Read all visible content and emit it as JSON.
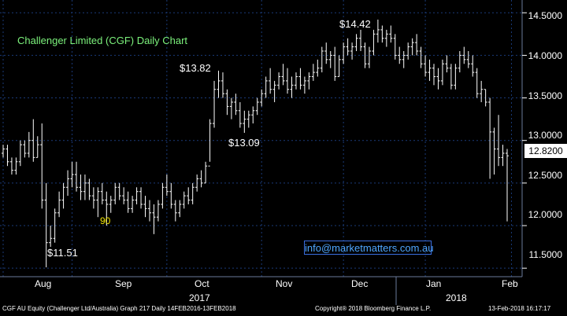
{
  "chart_data": {
    "type": "ohlc",
    "title": "Challenger Limited (CGF) Daily Chart",
    "ylabel": "",
    "xlabel": "",
    "y_ticks": [
      "14.5000",
      "14.0000",
      "13.5000",
      "13.0000",
      "12.5000",
      "12.0000",
      "11.5000"
    ],
    "y_tick_values": [
      14.5,
      14.0,
      13.5,
      13.0,
      12.5,
      12.0,
      11.5
    ],
    "ylim": [
      11.4,
      14.65
    ],
    "x_month_labels": [
      "Aug",
      "Sep",
      "Oct",
      "Nov",
      "Dec",
      "Jan",
      "Feb"
    ],
    "x_year_labels": [
      "2017",
      "2018"
    ],
    "last_price": "12.8200",
    "annotations": {
      "high": "$14.42",
      "oct_high": "$13.82",
      "nov_low": "$13.09",
      "low": "$11.51",
      "sep_marker": "90"
    },
    "series": [
      {
        "values": [
          [
            12.85,
            12.95,
            12.8,
            12.9
          ],
          [
            12.9,
            12.95,
            12.7,
            12.75
          ],
          [
            12.75,
            12.8,
            12.6,
            12.65
          ],
          [
            12.65,
            12.8,
            12.6,
            12.75
          ],
          [
            12.75,
            13.0,
            12.7,
            12.95
          ],
          [
            12.95,
            13.0,
            12.8,
            12.85
          ],
          [
            12.85,
            13.1,
            12.8,
            13.0
          ],
          [
            13.0,
            13.25,
            12.75,
            12.8
          ],
          [
            12.8,
            13.05,
            12.8,
            12.95
          ],
          [
            12.95,
            13.2,
            12.2,
            12.3
          ],
          [
            12.3,
            12.5,
            11.51,
            11.8
          ],
          [
            11.8,
            12.0,
            11.75,
            11.85
          ],
          [
            11.85,
            12.2,
            11.8,
            12.15
          ],
          [
            12.15,
            12.4,
            12.1,
            12.3
          ],
          [
            12.3,
            12.5,
            12.2,
            12.45
          ],
          [
            12.45,
            12.65,
            12.35,
            12.55
          ],
          [
            12.55,
            12.75,
            12.45,
            12.6
          ],
          [
            12.6,
            12.75,
            12.4,
            12.45
          ],
          [
            12.45,
            12.6,
            12.3,
            12.4
          ],
          [
            12.4,
            12.6,
            12.3,
            12.5
          ],
          [
            12.5,
            12.55,
            12.3,
            12.35
          ],
          [
            12.35,
            12.45,
            12.2,
            12.3
          ],
          [
            12.3,
            12.45,
            12.1,
            12.4
          ],
          [
            12.4,
            12.5,
            12.25,
            12.3
          ],
          [
            12.3,
            12.4,
            12.0,
            12.25
          ],
          [
            12.25,
            12.35,
            12.15,
            12.3
          ],
          [
            12.3,
            12.5,
            12.25,
            12.45
          ],
          [
            12.45,
            12.5,
            12.3,
            12.35
          ],
          [
            12.35,
            12.45,
            12.25,
            12.3
          ],
          [
            12.3,
            12.4,
            12.15,
            12.2
          ],
          [
            12.2,
            12.35,
            12.15,
            12.3
          ],
          [
            12.3,
            12.45,
            12.25,
            12.4
          ],
          [
            12.4,
            12.45,
            12.2,
            12.25
          ],
          [
            12.25,
            12.35,
            12.1,
            12.2
          ],
          [
            12.2,
            12.3,
            12.05,
            12.15
          ],
          [
            12.15,
            12.25,
            11.9,
            12.1
          ],
          [
            12.1,
            12.3,
            12.05,
            12.25
          ],
          [
            12.25,
            12.5,
            12.2,
            12.45
          ],
          [
            12.45,
            12.6,
            12.35,
            12.4
          ],
          [
            12.4,
            12.5,
            12.2,
            12.25
          ],
          [
            12.25,
            12.3,
            12.05,
            12.15
          ],
          [
            12.15,
            12.3,
            12.1,
            12.25
          ],
          [
            12.25,
            12.4,
            12.2,
            12.35
          ],
          [
            12.35,
            12.45,
            12.25,
            12.3
          ],
          [
            12.3,
            12.5,
            12.25,
            12.45
          ],
          [
            12.45,
            12.6,
            12.4,
            12.55
          ],
          [
            12.55,
            12.65,
            12.45,
            12.5
          ],
          [
            12.5,
            12.75,
            12.5,
            12.7
          ],
          [
            12.7,
            13.25,
            12.75,
            13.2
          ],
          [
            13.2,
            13.7,
            13.15,
            13.6
          ],
          [
            13.6,
            13.82,
            13.5,
            13.7
          ],
          [
            13.7,
            13.8,
            13.5,
            13.55
          ],
          [
            13.55,
            13.6,
            13.3,
            13.4
          ],
          [
            13.4,
            13.5,
            13.25,
            13.45
          ],
          [
            13.45,
            13.55,
            13.3,
            13.35
          ],
          [
            13.35,
            13.45,
            13.15,
            13.2
          ],
          [
            13.2,
            13.35,
            13.09,
            13.25
          ],
          [
            13.25,
            13.35,
            13.15,
            13.3
          ],
          [
            13.3,
            13.4,
            13.2,
            13.35
          ],
          [
            13.35,
            13.5,
            13.3,
            13.45
          ],
          [
            13.45,
            13.6,
            13.4,
            13.55
          ],
          [
            13.55,
            13.75,
            13.5,
            13.7
          ],
          [
            13.7,
            13.85,
            13.55,
            13.6
          ],
          [
            13.6,
            13.7,
            13.45,
            13.65
          ],
          [
            13.65,
            13.8,
            13.6,
            13.75
          ],
          [
            13.75,
            13.9,
            13.65,
            13.7
          ],
          [
            13.7,
            13.85,
            13.55,
            13.6
          ],
          [
            13.6,
            13.75,
            13.5,
            13.65
          ],
          [
            13.65,
            13.8,
            13.6,
            13.75
          ],
          [
            13.75,
            13.85,
            13.6,
            13.65
          ],
          [
            13.65,
            13.75,
            13.55,
            13.7
          ],
          [
            13.7,
            13.8,
            13.6,
            13.75
          ],
          [
            13.75,
            13.9,
            13.7,
            13.8
          ],
          [
            13.8,
            13.95,
            13.75,
            13.85
          ],
          [
            13.85,
            14.1,
            13.8,
            14.05
          ],
          [
            14.05,
            14.15,
            13.9,
            13.95
          ],
          [
            13.95,
            14.05,
            13.85,
            14.0
          ],
          [
            14.0,
            14.1,
            13.7,
            13.75
          ],
          [
            13.75,
            14.0,
            13.75,
            13.95
          ],
          [
            13.95,
            14.15,
            13.9,
            14.1
          ],
          [
            14.1,
            14.2,
            14.0,
            14.05
          ],
          [
            14.05,
            14.15,
            13.95,
            14.1
          ],
          [
            14.1,
            14.25,
            14.05,
            14.2
          ],
          [
            14.2,
            14.3,
            14.05,
            14.1
          ],
          [
            14.1,
            14.15,
            13.85,
            13.9
          ],
          [
            13.9,
            14.1,
            13.85,
            14.05
          ],
          [
            14.05,
            14.3,
            14.0,
            14.25
          ],
          [
            14.25,
            14.42,
            14.15,
            14.3
          ],
          [
            14.3,
            14.35,
            14.15,
            14.2
          ],
          [
            14.2,
            14.3,
            14.1,
            14.25
          ],
          [
            14.25,
            14.35,
            14.15,
            14.2
          ],
          [
            14.2,
            14.25,
            13.95,
            14.0
          ],
          [
            14.0,
            14.1,
            13.9,
            13.95
          ],
          [
            13.95,
            14.05,
            13.85,
            14.0
          ],
          [
            14.0,
            14.15,
            13.95,
            14.1
          ],
          [
            14.1,
            14.2,
            14.0,
            14.15
          ],
          [
            14.15,
            14.25,
            14.0,
            14.05
          ],
          [
            14.05,
            14.1,
            13.85,
            13.9
          ],
          [
            13.9,
            14.0,
            13.75,
            13.8
          ],
          [
            13.8,
            13.95,
            13.7,
            13.85
          ],
          [
            13.85,
            13.9,
            13.65,
            13.75
          ],
          [
            13.75,
            13.85,
            13.6,
            13.7
          ],
          [
            13.7,
            13.95,
            13.65,
            13.9
          ],
          [
            13.9,
            14.0,
            13.8,
            13.85
          ],
          [
            13.85,
            13.9,
            13.6,
            13.65
          ],
          [
            13.65,
            13.9,
            13.6,
            13.85
          ],
          [
            13.85,
            14.05,
            13.8,
            14.0
          ],
          [
            14.0,
            14.1,
            13.9,
            13.95
          ],
          [
            13.95,
            14.05,
            13.85,
            13.9
          ],
          [
            13.9,
            14.0,
            13.75,
            13.8
          ],
          [
            13.8,
            13.85,
            13.5,
            13.55
          ],
          [
            13.55,
            13.7,
            13.45,
            13.6
          ],
          [
            13.6,
            13.6,
            13.4,
            13.45
          ],
          [
            13.45,
            13.5,
            12.55,
            13.1
          ],
          [
            13.1,
            13.15,
            12.6,
            12.9
          ],
          [
            12.9,
            13.3,
            12.7,
            12.8
          ],
          [
            12.8,
            12.95,
            12.7,
            12.85
          ],
          [
            12.85,
            12.9,
            12.05,
            12.82
          ]
        ]
      }
    ]
  },
  "info_link": "info@marketmatters.com.au",
  "footer": {
    "left": "CGF AU Equity (Challenger Ltd/Australia) Graph 217   Daily 14FEB2016-13FEB2018",
    "center": "Copyright® 2018 Bloomberg Finance L.P.",
    "right": "13-Feb-2018 16:17:17"
  },
  "colors": {
    "bars": "#ffffff",
    "grid": "#1a3a78",
    "background": "#000000",
    "title": "#7cf27c",
    "marker": "#f2e600",
    "link": "#4fa7ff"
  }
}
